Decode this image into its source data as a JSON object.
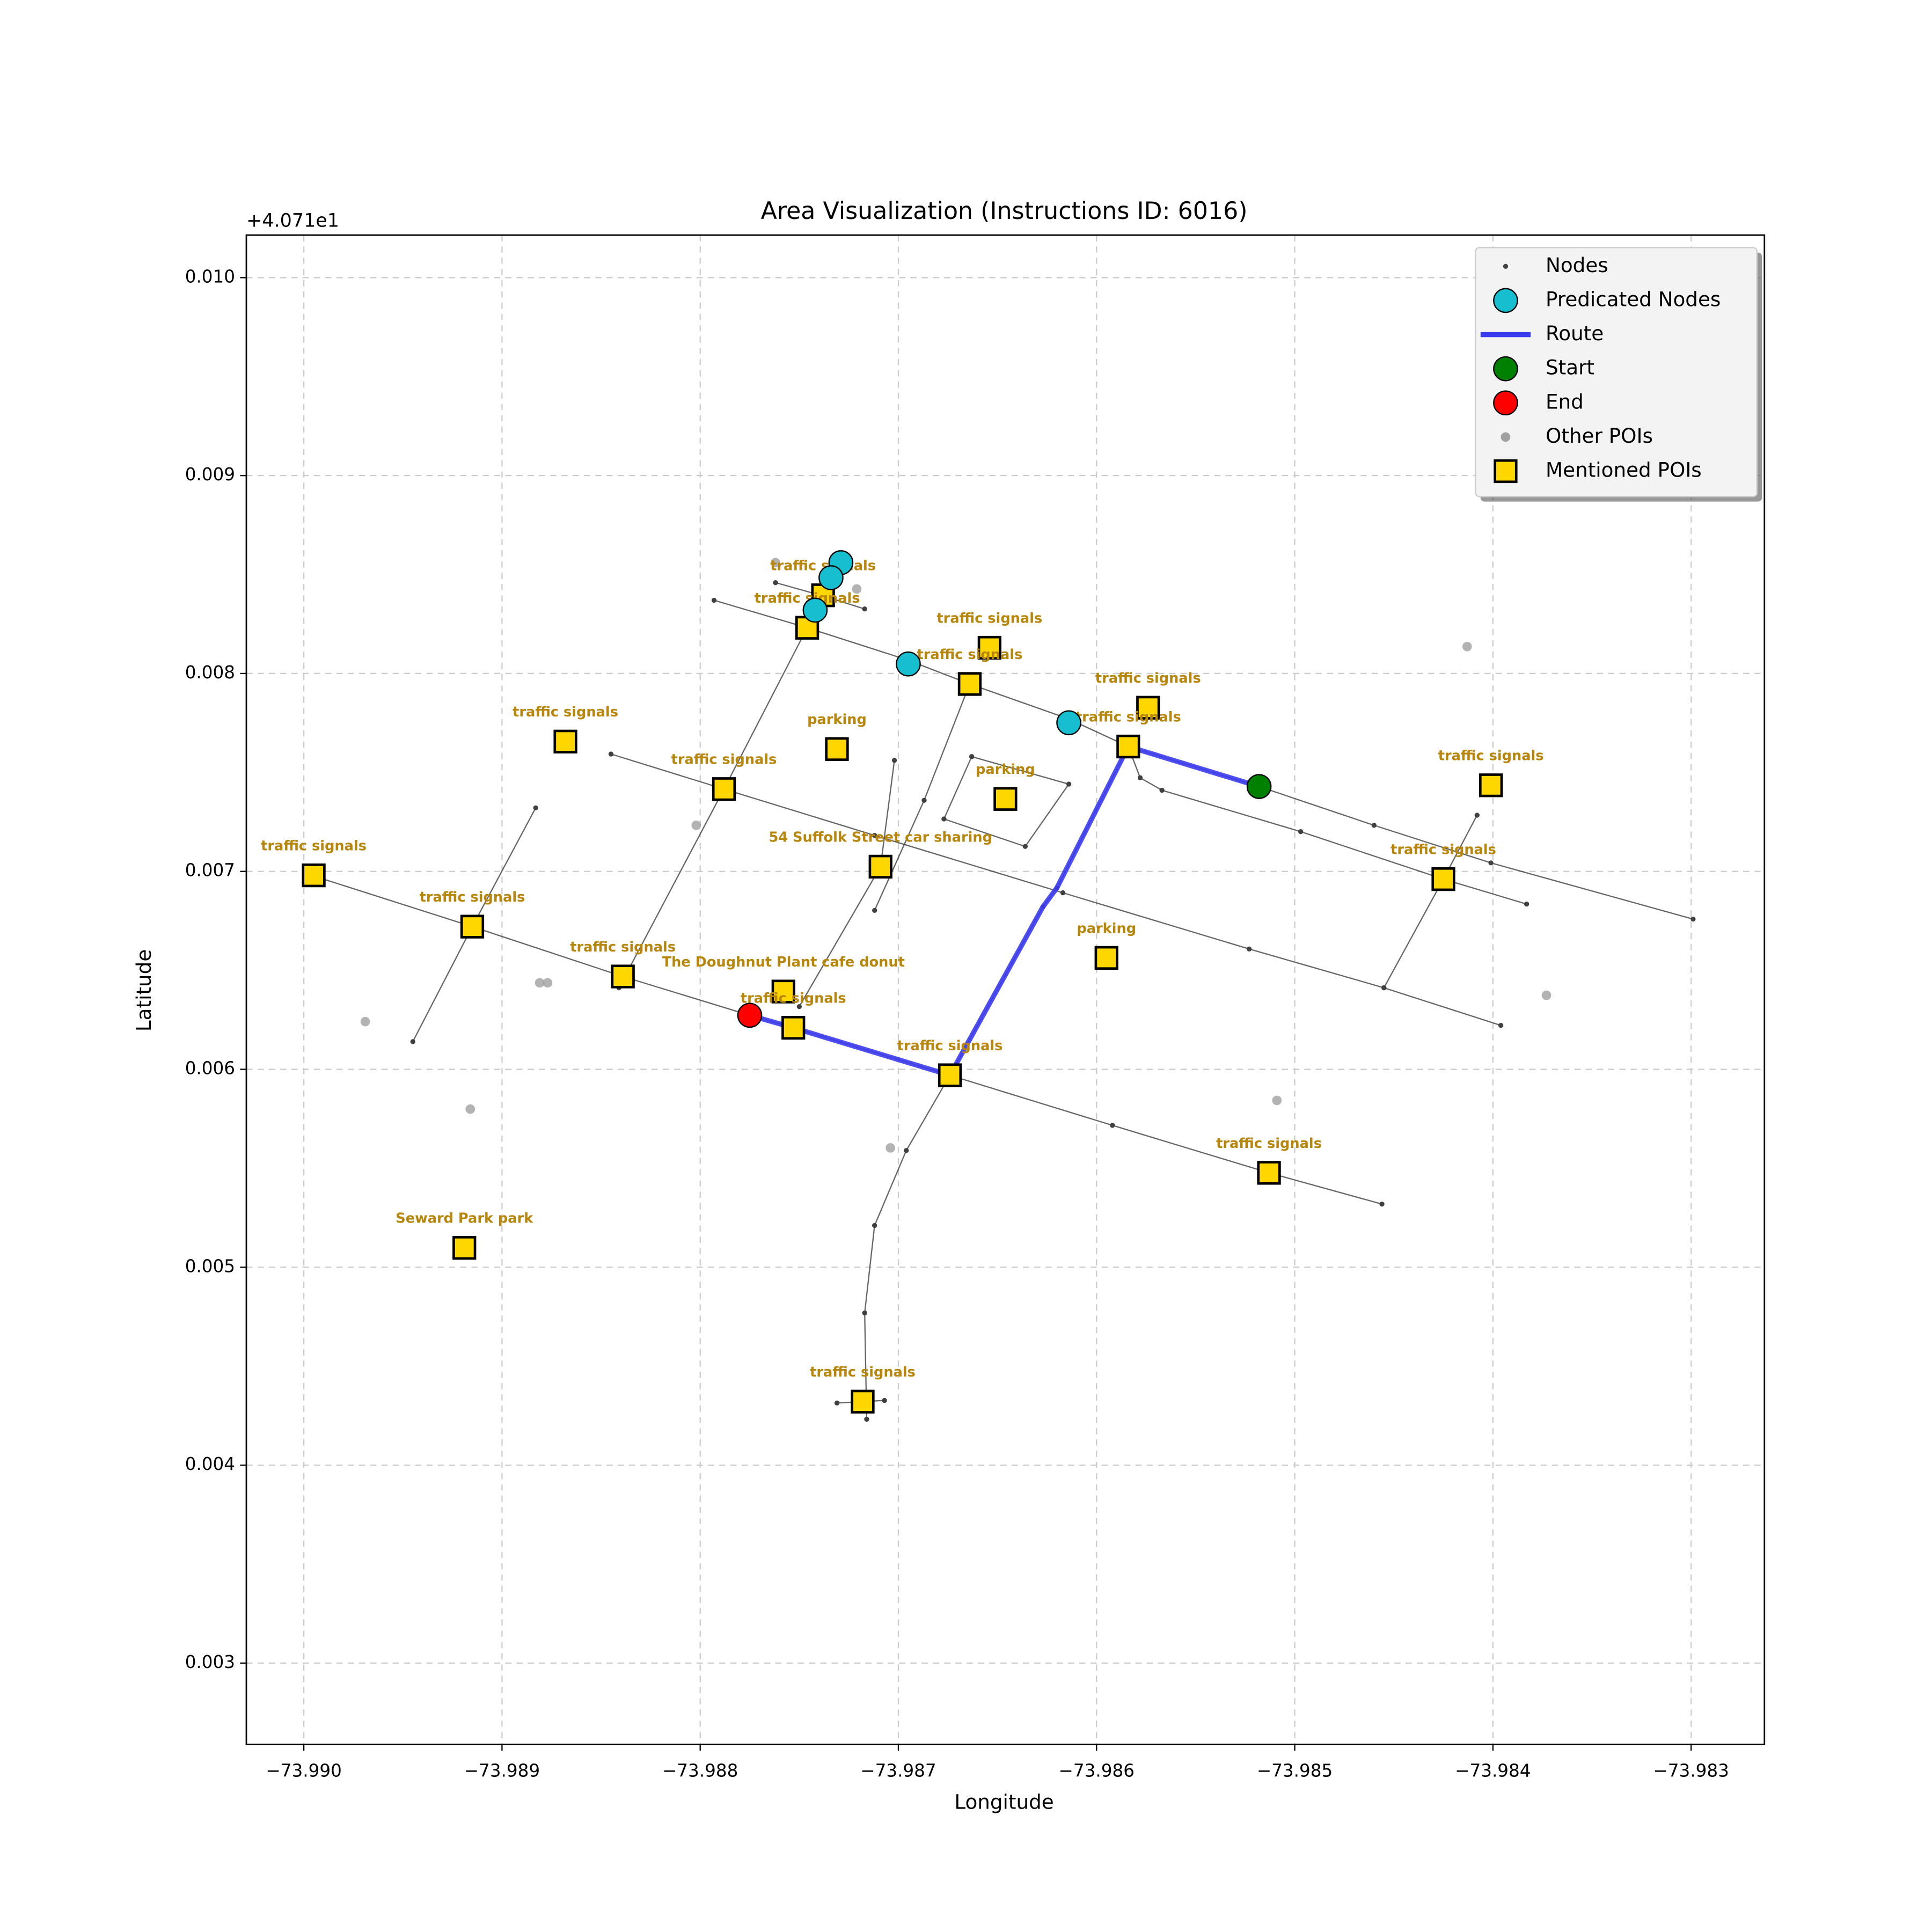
{
  "chart_data": {
    "type": "scatter",
    "title": "Area Visualization (Instructions ID: 6016)",
    "x_label": "Longitude",
    "y_label": "Latitude",
    "y_offset_label": "+4.071e1",
    "xlim": [
      -73.99029,
      -73.98263
    ],
    "ylim": [
      0.002589,
      0.010215
    ],
    "xticks": [
      {
        "value": -73.99,
        "label": "−73.990"
      },
      {
        "value": -73.989,
        "label": "−73.989"
      },
      {
        "value": -73.988,
        "label": "−73.988"
      },
      {
        "value": -73.987,
        "label": "−73.987"
      },
      {
        "value": -73.986,
        "label": "−73.986"
      },
      {
        "value": -73.985,
        "label": "−73.985"
      },
      {
        "value": -73.984,
        "label": "−73.984"
      },
      {
        "value": -73.983,
        "label": "−73.983"
      }
    ],
    "yticks": [
      {
        "value": 0.003,
        "label": "0.003"
      },
      {
        "value": 0.004,
        "label": "0.004"
      },
      {
        "value": 0.005,
        "label": "0.005"
      },
      {
        "value": 0.006,
        "label": "0.006"
      },
      {
        "value": 0.007,
        "label": "0.007"
      },
      {
        "value": 0.008,
        "label": "0.008"
      },
      {
        "value": 0.009,
        "label": "0.009"
      },
      {
        "value": 0.01,
        "label": "0.010"
      }
    ],
    "grid": true,
    "legend": "upper right",
    "series": [
      {
        "name": "Nodes",
        "color": "#404040",
        "marker": "node",
        "x": [
          -73.98996,
          -73.98915,
          -73.98839,
          -73.98775,
          -73.98753,
          -73.98674,
          -73.98592,
          -73.98513,
          -73.98456,
          null,
          -73.98845,
          -73.98788,
          -73.98712,
          -73.98617,
          -73.98523,
          -73.98455,
          -73.98396,
          null,
          -73.98793,
          -73.98746,
          -73.98695,
          -73.98664,
          -73.98614,
          -73.98584,
          -73.98518,
          -73.9846,
          -73.98401,
          -73.98299,
          null,
          -73.98584,
          -73.98578,
          -73.98567,
          -73.98497,
          -73.98425,
          -73.98383,
          null,
          -73.98762,
          -73.98737,
          -73.98717,
          null,
          -73.98945,
          -73.98915,
          -73.98883,
          null,
          -73.98841,
          -73.98788,
          -73.98746,
          null,
          -73.9875,
          -73.98709,
          -73.98702,
          null,
          -73.98712,
          -73.98687,
          -73.98664,
          null,
          -73.98716,
          -73.98717,
          -73.98712,
          -73.98696,
          -73.98674,
          null,
          -73.98674,
          -73.98627,
          -73.9862,
          -73.98584,
          null,
          -73.98455,
          -73.98425,
          -73.98408,
          null,
          -73.98731,
          -73.98707,
          null,
          -73.98663,
          -73.98614,
          -73.98636,
          -73.98677,
          -73.98663
        ],
        "y": [
          0.00698,
          0.006721,
          0.006469,
          0.006273,
          0.00621,
          0.00597,
          0.005717,
          0.005477,
          0.005319,
          null,
          0.007593,
          0.007416,
          0.007182,
          0.006892,
          0.006608,
          0.006412,
          0.006222,
          null,
          0.00837,
          0.008231,
          0.008067,
          0.007947,
          0.00777,
          0.007631,
          0.007429,
          0.007233,
          0.007043,
          0.006759,
          null,
          0.007631,
          0.007473,
          0.00741,
          0.007201,
          0.006961,
          0.006835,
          null,
          0.008459,
          0.008389,
          0.008326,
          null,
          0.00614,
          0.006721,
          0.007321,
          null,
          0.006412,
          0.007416,
          0.008231,
          null,
          0.006317,
          0.007024,
          0.007561,
          null,
          0.006803,
          0.007359,
          0.007947,
          null,
          0.004232,
          0.004769,
          0.005211,
          0.00559,
          0.00597,
          null,
          0.00597,
          0.006822,
          0.006917,
          0.007631,
          null,
          0.006412,
          0.006961,
          0.007284,
          null,
          0.004314,
          0.004327,
          null,
          0.00758,
          0.007441,
          0.007126,
          0.007265,
          0.00758
        ]
      },
      {
        "name": "Predicated Nodes",
        "color": "#17becf",
        "marker": "circle",
        "x": [
          -73.98729,
          -73.98734,
          -73.98742,
          -73.98695,
          -73.98614
        ],
        "y": [
          0.00856,
          0.008484,
          0.00832,
          0.008048,
          0.007751
        ]
      },
      {
        "name": "Route",
        "color": "#3b3bf0",
        "marker": "line",
        "x": [
          -73.98775,
          -73.98753,
          -73.98674,
          -73.98627,
          -73.9862,
          -73.98584,
          -73.98518
        ],
        "y": [
          0.006273,
          0.00621,
          0.00597,
          0.006822,
          0.006917,
          0.007631,
          0.007429
        ]
      },
      {
        "name": "Start",
        "color": "#008000",
        "marker": "circle",
        "x": [
          -73.98518
        ],
        "y": [
          0.007429
        ]
      },
      {
        "name": "End",
        "color": "#ff0000",
        "marker": "circle",
        "x": [
          -73.98775
        ],
        "y": [
          0.006273
        ]
      },
      {
        "name": "Other POIs",
        "color": "#a0a0a0",
        "marker": "dot",
        "x": [
          -73.98762,
          -73.98721,
          -73.98802,
          -73.98881,
          -73.98877,
          -73.98969,
          -73.98916,
          -73.98704,
          -73.98413,
          -73.98373,
          -73.98509
        ],
        "y": [
          0.00856,
          0.008427,
          0.007233,
          0.006437,
          0.006437,
          0.006241,
          0.005799,
          0.005603,
          0.008136,
          0.006374,
          0.005843
        ]
      },
      {
        "name": "Mentioned POIs",
        "color": "#ffd700",
        "marker": "square",
        "x": [
          -73.98738,
          -73.98746,
          -73.98654,
          -73.98664,
          -73.98574,
          -73.98584,
          -73.98868,
          -73.98731,
          -73.98788,
          -73.98646,
          -73.98401,
          -73.98709,
          -73.98995,
          -73.98425,
          -73.98915,
          -73.98595,
          -73.98839,
          -73.98758,
          -73.98753,
          -73.98674,
          -73.98513,
          -73.98919,
          -73.98718
        ],
        "y": [
          0.008395,
          0.008231,
          0.00813,
          0.007947,
          0.007827,
          0.007631,
          0.007656,
          0.007618,
          0.007416,
          0.007366,
          0.007435,
          0.007024,
          0.00698,
          0.006961,
          0.006721,
          0.006563,
          0.006469,
          0.006393,
          0.00621,
          0.00597,
          0.005477,
          0.005098,
          0.004321
        ],
        "labels": [
          "traffic signals",
          "traffic signals",
          "traffic signals",
          "traffic signals",
          "traffic signals",
          "traffic signals",
          "traffic signals",
          "parking",
          "traffic signals",
          "parking",
          "traffic signals",
          "54 Suffolk Street car sharing",
          "traffic signals",
          "traffic signals",
          "traffic signals",
          "parking",
          "traffic signals",
          "The Doughnut Plant cafe donut",
          "traffic signals",
          "traffic signals",
          "traffic signals",
          "Seward Park   park",
          "traffic signals"
        ]
      }
    ]
  }
}
